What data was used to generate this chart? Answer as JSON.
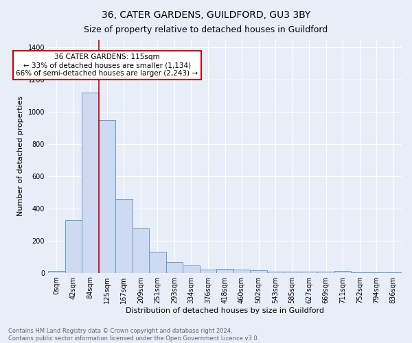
{
  "title": "36, CATER GARDENS, GUILDFORD, GU3 3BY",
  "subtitle": "Size of property relative to detached houses in Guildford",
  "xlabel": "Distribution of detached houses by size in Guildford",
  "ylabel": "Number of detached properties",
  "footnote1": "Contains HM Land Registry data © Crown copyright and database right 2024.",
  "footnote2": "Contains public sector information licensed under the Open Government Licence v3.0.",
  "bar_labels": [
    "0sqm",
    "42sqm",
    "84sqm",
    "125sqm",
    "167sqm",
    "209sqm",
    "251sqm",
    "293sqm",
    "334sqm",
    "376sqm",
    "418sqm",
    "460sqm",
    "502sqm",
    "543sqm",
    "585sqm",
    "627sqm",
    "669sqm",
    "711sqm",
    "752sqm",
    "794sqm",
    "836sqm"
  ],
  "bar_values": [
    10,
    325,
    1120,
    950,
    460,
    275,
    130,
    65,
    45,
    20,
    22,
    20,
    15,
    5,
    5,
    5,
    5,
    13,
    2,
    2,
    2
  ],
  "bar_color": "#cddaf2",
  "bar_edge_color": "#6699cc",
  "ylim": [
    0,
    1450
  ],
  "yticks": [
    0,
    200,
    400,
    600,
    800,
    1000,
    1200,
    1400
  ],
  "vline_x": 2.5,
  "vline_color": "#cc0000",
  "annotation_text": "36 CATER GARDENS: 115sqm\n← 33% of detached houses are smaller (1,134)\n66% of semi-detached houses are larger (2,243) →",
  "annotation_box_color": "#ffffff",
  "annotation_box_edge_color": "#cc0000",
  "bg_color": "#e8eef8",
  "grid_color": "#ffffff",
  "title_fontsize": 10,
  "subtitle_fontsize": 9,
  "axis_label_fontsize": 8,
  "tick_fontsize": 7,
  "annot_fontsize": 7.5
}
